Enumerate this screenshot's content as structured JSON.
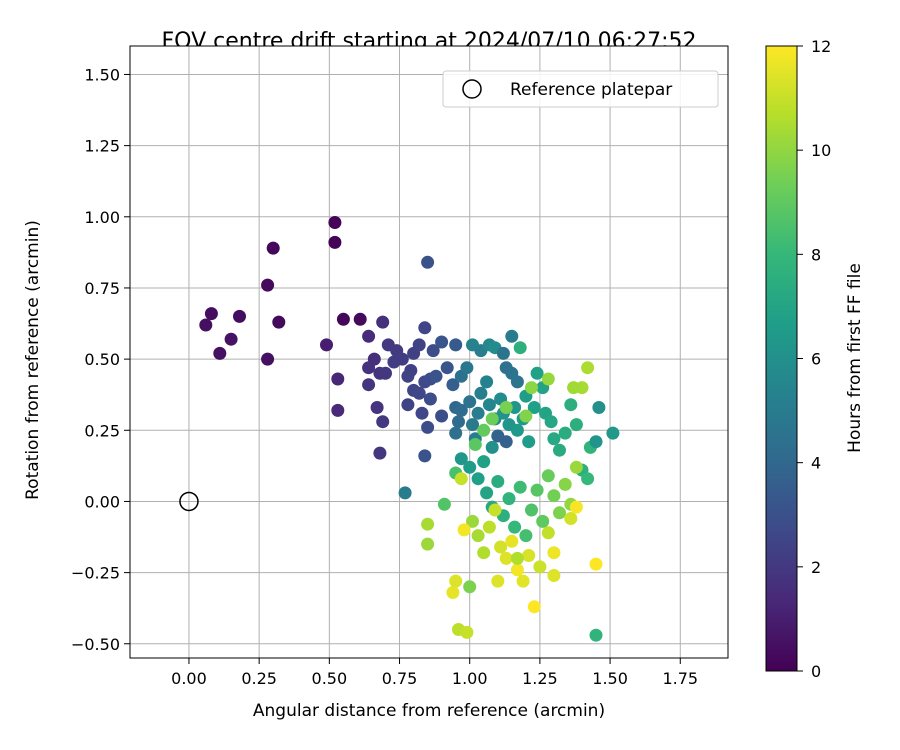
{
  "chart_data": {
    "type": "scatter",
    "title": "FOV centre drift starting at 2024/07/10 06:27:52",
    "xlabel": "Angular distance from reference (arcmin)",
    "ylabel": "Rotation from reference (arcmin)",
    "xlim": [
      -0.21,
      1.92
    ],
    "ylim": [
      -0.55,
      1.6
    ],
    "x_ticks": [
      0.0,
      0.25,
      0.5,
      0.75,
      1.0,
      1.25,
      1.5,
      1.75
    ],
    "x_tick_labels": [
      "0.00",
      "0.25",
      "0.50",
      "0.75",
      "1.00",
      "1.25",
      "1.50",
      "1.75"
    ],
    "y_ticks": [
      -0.5,
      -0.25,
      0.0,
      0.25,
      0.5,
      0.75,
      1.0,
      1.25,
      1.5
    ],
    "y_tick_labels": [
      "−0.50",
      "−0.25",
      "0.00",
      "0.25",
      "0.50",
      "0.75",
      "1.00",
      "1.25",
      "1.50"
    ],
    "grid": true,
    "legend": {
      "position": "top-right",
      "entries": [
        "Reference platepar"
      ]
    },
    "reference_point": {
      "x": 0.0,
      "y": 0.0,
      "label": "Reference platepar"
    },
    "colorbar": {
      "label": "Hours from first FF file",
      "min": 0,
      "max": 12,
      "ticks": [
        0,
        2,
        4,
        6,
        8,
        10,
        12
      ],
      "tick_labels": [
        "0",
        "2",
        "4",
        "6",
        "8",
        "10",
        "12"
      ],
      "colormap": "viridis",
      "stops": [
        "#440154",
        "#482878",
        "#3e4989",
        "#31688e",
        "#26828e",
        "#1f9e89",
        "#35b779",
        "#6ece58",
        "#b5de2b",
        "#fde725"
      ]
    },
    "points": [
      {
        "x": 0.52,
        "y": 0.98,
        "h": 0.1
      },
      {
        "x": 0.52,
        "y": 0.91,
        "h": 0.1
      },
      {
        "x": 0.3,
        "y": 0.89,
        "h": 0.2
      },
      {
        "x": 0.28,
        "y": 0.76,
        "h": 0.3
      },
      {
        "x": 0.08,
        "y": 0.66,
        "h": 0.4
      },
      {
        "x": 0.06,
        "y": 0.62,
        "h": 0.5
      },
      {
        "x": 0.18,
        "y": 0.65,
        "h": 0.4
      },
      {
        "x": 0.15,
        "y": 0.57,
        "h": 0.6
      },
      {
        "x": 0.11,
        "y": 0.52,
        "h": 0.5
      },
      {
        "x": 0.32,
        "y": 0.63,
        "h": 0.3
      },
      {
        "x": 0.28,
        "y": 0.5,
        "h": 0.5
      },
      {
        "x": 0.55,
        "y": 0.64,
        "h": 0.2
      },
      {
        "x": 0.61,
        "y": 0.64,
        "h": 0.3
      },
      {
        "x": 0.49,
        "y": 0.55,
        "h": 1.0
      },
      {
        "x": 0.53,
        "y": 0.43,
        "h": 1.3
      },
      {
        "x": 0.53,
        "y": 0.32,
        "h": 1.4
      },
      {
        "x": 0.64,
        "y": 0.58,
        "h": 1.5
      },
      {
        "x": 0.69,
        "y": 0.63,
        "h": 1.6
      },
      {
        "x": 0.64,
        "y": 0.47,
        "h": 1.7
      },
      {
        "x": 0.66,
        "y": 0.5,
        "h": 1.6
      },
      {
        "x": 0.64,
        "y": 0.41,
        "h": 1.8
      },
      {
        "x": 0.68,
        "y": 0.45,
        "h": 1.8
      },
      {
        "x": 0.71,
        "y": 0.55,
        "h": 2.0
      },
      {
        "x": 0.67,
        "y": 0.33,
        "h": 1.8
      },
      {
        "x": 0.69,
        "y": 0.28,
        "h": 2.0
      },
      {
        "x": 0.68,
        "y": 0.17,
        "h": 1.9
      },
      {
        "x": 0.7,
        "y": 0.45,
        "h": 1.9
      },
      {
        "x": 0.74,
        "y": 0.53,
        "h": 2.1
      },
      {
        "x": 0.73,
        "y": 0.49,
        "h": 2.2
      },
      {
        "x": 0.76,
        "y": 0.5,
        "h": 2.2
      },
      {
        "x": 0.79,
        "y": 0.46,
        "h": 2.3
      },
      {
        "x": 0.78,
        "y": 0.44,
        "h": 2.4
      },
      {
        "x": 0.8,
        "y": 0.52,
        "h": 2.3
      },
      {
        "x": 0.82,
        "y": 0.55,
        "h": 2.4
      },
      {
        "x": 0.84,
        "y": 0.61,
        "h": 2.5
      },
      {
        "x": 0.85,
        "y": 0.84,
        "h": 3.0
      },
      {
        "x": 0.8,
        "y": 0.39,
        "h": 2.5
      },
      {
        "x": 0.78,
        "y": 0.34,
        "h": 2.4
      },
      {
        "x": 0.82,
        "y": 0.38,
        "h": 2.6
      },
      {
        "x": 0.83,
        "y": 0.31,
        "h": 2.6
      },
      {
        "x": 0.84,
        "y": 0.42,
        "h": 2.7
      },
      {
        "x": 0.86,
        "y": 0.43,
        "h": 2.8
      },
      {
        "x": 0.86,
        "y": 0.36,
        "h": 2.8
      },
      {
        "x": 0.87,
        "y": 0.53,
        "h": 2.8
      },
      {
        "x": 0.9,
        "y": 0.3,
        "h": 2.9
      },
      {
        "x": 0.85,
        "y": 0.26,
        "h": 2.9
      },
      {
        "x": 0.84,
        "y": 0.16,
        "h": 3.1
      },
      {
        "x": 0.77,
        "y": 0.03,
        "h": 5.0
      },
      {
        "x": 0.88,
        "y": 0.44,
        "h": 3.1
      },
      {
        "x": 0.92,
        "y": 0.47,
        "h": 3.2
      },
      {
        "x": 0.9,
        "y": 0.56,
        "h": 3.2
      },
      {
        "x": 0.95,
        "y": 0.55,
        "h": 3.4
      },
      {
        "x": 0.94,
        "y": 0.41,
        "h": 3.6
      },
      {
        "x": 0.97,
        "y": 0.44,
        "h": 4.4
      },
      {
        "x": 0.99,
        "y": 0.47,
        "h": 4.8
      },
      {
        "x": 1.01,
        "y": 0.55,
        "h": 5.4
      },
      {
        "x": 1.04,
        "y": 0.53,
        "h": 5.2
      },
      {
        "x": 1.07,
        "y": 0.55,
        "h": 5.6
      },
      {
        "x": 1.09,
        "y": 0.54,
        "h": 5.8
      },
      {
        "x": 1.12,
        "y": 0.52,
        "h": 4.6
      },
      {
        "x": 1.15,
        "y": 0.58,
        "h": 5.0
      },
      {
        "x": 1.18,
        "y": 0.54,
        "h": 7.6
      },
      {
        "x": 1.13,
        "y": 0.47,
        "h": 4.4
      },
      {
        "x": 1.15,
        "y": 0.45,
        "h": 4.6
      },
      {
        "x": 1.17,
        "y": 0.42,
        "h": 4.7
      },
      {
        "x": 0.95,
        "y": 0.33,
        "h": 4.0
      },
      {
        "x": 0.96,
        "y": 0.28,
        "h": 4.2
      },
      {
        "x": 0.97,
        "y": 0.32,
        "h": 4.2
      },
      {
        "x": 0.95,
        "y": 0.24,
        "h": 4.4
      },
      {
        "x": 1.0,
        "y": 0.35,
        "h": 4.5
      },
      {
        "x": 1.01,
        "y": 0.27,
        "h": 4.9
      },
      {
        "x": 1.02,
        "y": 0.22,
        "h": 5.1
      },
      {
        "x": 1.03,
        "y": 0.31,
        "h": 5.1
      },
      {
        "x": 1.04,
        "y": 0.38,
        "h": 5.2
      },
      {
        "x": 1.06,
        "y": 0.42,
        "h": 5.3
      },
      {
        "x": 1.07,
        "y": 0.34,
        "h": 5.5
      },
      {
        "x": 1.09,
        "y": 0.29,
        "h": 5.6
      },
      {
        "x": 1.11,
        "y": 0.36,
        "h": 5.8
      },
      {
        "x": 1.1,
        "y": 0.23,
        "h": 3.8
      },
      {
        "x": 1.13,
        "y": 0.21,
        "h": 3.7
      },
      {
        "x": 1.08,
        "y": 0.19,
        "h": 6.0
      },
      {
        "x": 1.12,
        "y": 0.31,
        "h": 6.1
      },
      {
        "x": 1.14,
        "y": 0.27,
        "h": 6.2
      },
      {
        "x": 1.16,
        "y": 0.33,
        "h": 6.3
      },
      {
        "x": 1.17,
        "y": 0.25,
        "h": 6.4
      },
      {
        "x": 1.19,
        "y": 0.29,
        "h": 6.5
      },
      {
        "x": 1.2,
        "y": 0.37,
        "h": 6.6
      },
      {
        "x": 1.21,
        "y": 0.21,
        "h": 6.6
      },
      {
        "x": 1.23,
        "y": 0.33,
        "h": 6.7
      },
      {
        "x": 1.24,
        "y": 0.45,
        "h": 6.8
      },
      {
        "x": 1.26,
        "y": 0.4,
        "h": 6.9
      },
      {
        "x": 1.27,
        "y": 0.31,
        "h": 7.0
      },
      {
        "x": 1.29,
        "y": 0.28,
        "h": 7.1
      },
      {
        "x": 1.3,
        "y": 0.22,
        "h": 7.2
      },
      {
        "x": 1.32,
        "y": 0.18,
        "h": 7.3
      },
      {
        "x": 1.34,
        "y": 0.24,
        "h": 7.4
      },
      {
        "x": 1.36,
        "y": 0.34,
        "h": 7.5
      },
      {
        "x": 1.38,
        "y": 0.27,
        "h": 7.5
      },
      {
        "x": 1.4,
        "y": 0.11,
        "h": 7.6
      },
      {
        "x": 1.43,
        "y": 0.19,
        "h": 7.8
      },
      {
        "x": 1.45,
        "y": 0.21,
        "h": 6.2
      },
      {
        "x": 1.46,
        "y": 0.33,
        "h": 6.0
      },
      {
        "x": 1.51,
        "y": 0.24,
        "h": 6.4
      },
      {
        "x": 1.45,
        "y": -0.47,
        "h": 7.8
      },
      {
        "x": 1.42,
        "y": 0.08,
        "h": 8.0
      },
      {
        "x": 0.97,
        "y": 0.15,
        "h": 6.3
      },
      {
        "x": 1.0,
        "y": 0.12,
        "h": 6.5
      },
      {
        "x": 1.03,
        "y": 0.08,
        "h": 6.7
      },
      {
        "x": 1.05,
        "y": 0.14,
        "h": 6.8
      },
      {
        "x": 1.06,
        "y": 0.03,
        "h": 7.0
      },
      {
        "x": 1.08,
        "y": -0.02,
        "h": 7.2
      },
      {
        "x": 1.1,
        "y": 0.07,
        "h": 7.4
      },
      {
        "x": 1.12,
        "y": -0.05,
        "h": 7.6
      },
      {
        "x": 1.14,
        "y": 0.01,
        "h": 7.8
      },
      {
        "x": 1.16,
        "y": -0.09,
        "h": 8.0
      },
      {
        "x": 1.18,
        "y": 0.05,
        "h": 8.2
      },
      {
        "x": 1.2,
        "y": -0.12,
        "h": 8.4
      },
      {
        "x": 1.22,
        "y": -0.03,
        "h": 8.6
      },
      {
        "x": 1.24,
        "y": 0.04,
        "h": 8.8
      },
      {
        "x": 1.26,
        "y": -0.07,
        "h": 9.0
      },
      {
        "x": 1.28,
        "y": 0.09,
        "h": 9.2
      },
      {
        "x": 1.3,
        "y": 0.02,
        "h": 9.4
      },
      {
        "x": 1.32,
        "y": -0.04,
        "h": 9.6
      },
      {
        "x": 1.34,
        "y": 0.06,
        "h": 9.8
      },
      {
        "x": 1.36,
        "y": -0.01,
        "h": 10.0
      },
      {
        "x": 1.38,
        "y": 0.12,
        "h": 10.2
      },
      {
        "x": 1.4,
        "y": 0.4,
        "h": 10.4
      },
      {
        "x": 1.42,
        "y": 0.47,
        "h": 10.5
      },
      {
        "x": 1.37,
        "y": 0.4,
        "h": 10.3
      },
      {
        "x": 1.28,
        "y": 0.43,
        "h": 10.1
      },
      {
        "x": 1.22,
        "y": 0.4,
        "h": 9.9
      },
      {
        "x": 1.2,
        "y": 0.3,
        "h": 9.7
      },
      {
        "x": 1.13,
        "y": 0.33,
        "h": 9.5
      },
      {
        "x": 1.08,
        "y": 0.29,
        "h": 9.3
      },
      {
        "x": 1.05,
        "y": 0.25,
        "h": 9.1
      },
      {
        "x": 1.02,
        "y": 0.2,
        "h": 8.9
      },
      {
        "x": 0.91,
        "y": -0.01,
        "h": 8.7
      },
      {
        "x": 0.95,
        "y": 0.1,
        "h": 8.5
      },
      {
        "x": 1.01,
        "y": -0.07,
        "h": 10.2
      },
      {
        "x": 1.03,
        "y": -0.12,
        "h": 10.4
      },
      {
        "x": 1.05,
        "y": -0.18,
        "h": 10.6
      },
      {
        "x": 1.07,
        "y": -0.09,
        "h": 10.8
      },
      {
        "x": 1.09,
        "y": -0.03,
        "h": 11.0
      },
      {
        "x": 1.11,
        "y": -0.16,
        "h": 11.2
      },
      {
        "x": 1.13,
        "y": -0.2,
        "h": 11.4
      },
      {
        "x": 1.15,
        "y": -0.14,
        "h": 11.6
      },
      {
        "x": 1.17,
        "y": -0.24,
        "h": 11.8
      },
      {
        "x": 1.19,
        "y": -0.28,
        "h": 11.5
      },
      {
        "x": 1.21,
        "y": -0.19,
        "h": 11.3
      },
      {
        "x": 1.23,
        "y": -0.37,
        "h": 12.0
      },
      {
        "x": 1.25,
        "y": -0.23,
        "h": 11.1
      },
      {
        "x": 1.28,
        "y": -0.11,
        "h": 10.9
      },
      {
        "x": 1.3,
        "y": -0.26,
        "h": 11.4
      },
      {
        "x": 1.3,
        "y": -0.18,
        "h": 11.7
      },
      {
        "x": 1.36,
        "y": -0.06,
        "h": 11.2
      },
      {
        "x": 1.38,
        "y": -0.02,
        "h": 11.9
      },
      {
        "x": 1.45,
        "y": -0.22,
        "h": 12.0
      },
      {
        "x": 0.94,
        "y": -0.32,
        "h": 11.6
      },
      {
        "x": 0.95,
        "y": -0.28,
        "h": 11.4
      },
      {
        "x": 0.96,
        "y": -0.45,
        "h": 10.8
      },
      {
        "x": 0.99,
        "y": -0.46,
        "h": 11.0
      },
      {
        "x": 1.0,
        "y": -0.3,
        "h": 9.6
      },
      {
        "x": 0.85,
        "y": -0.08,
        "h": 10.4
      },
      {
        "x": 0.85,
        "y": -0.15,
        "h": 10.2
      },
      {
        "x": 0.97,
        "y": 0.08,
        "h": 11.0
      },
      {
        "x": 0.98,
        "y": -0.1,
        "h": 11.8
      },
      {
        "x": 1.1,
        "y": -0.28,
        "h": 11.4
      },
      {
        "x": 1.17,
        "y": -0.2,
        "h": 10.6
      }
    ]
  }
}
